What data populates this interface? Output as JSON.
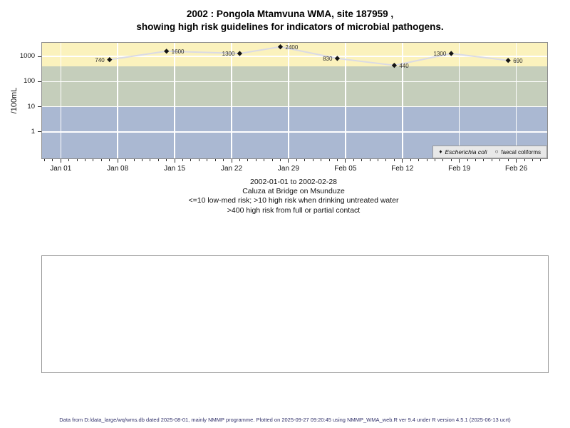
{
  "title": {
    "line1": "2002 : Pongola Mtamvuna WMA, site 187959 ,",
    "line2": "showing high risk guidelines for indicators of microbial pathogens."
  },
  "subtitle": {
    "line1": "2002-01-01 to 2002-02-28",
    "line2": "Caluza at Bridge on Msunduze",
    "line3": "<=10 low-med risk; >10 high risk when drinking untreated water",
    "line4": ">400 high risk from full or partial contact"
  },
  "footer": "Data from D:/data_large/wq/wms.db dated 2025-08-01, mainly NMMP programme. Plotted on 2025-09-27 09:20:45 using NMMP_WMA_web.R ver 9.4 under R version 4.5.1 (2025-06-13 ucrt)",
  "chart_data": {
    "type": "line",
    "title": "2002 : Pongola Mtamvuna WMA, site 187959 , showing high risk guidelines for indicators of microbial pathogens.",
    "ylabel": "/100mL",
    "yscale": "log",
    "ylim": [
      0.089,
      3460
    ],
    "xlim_days": [
      -2.3,
      59.8
    ],
    "grid": "white weekly vertical lines and decade horizontal lines",
    "y_ticks": [
      {
        "value": 1000,
        "label": "1000"
      },
      {
        "value": 100,
        "label": "100"
      },
      {
        "value": 10,
        "label": "10"
      },
      {
        "value": 1,
        "label": "1"
      }
    ],
    "x_ticks": [
      {
        "day": 0,
        "label": "Jan 01"
      },
      {
        "day": 7,
        "label": "Jan 08"
      },
      {
        "day": 14,
        "label": "Jan 15"
      },
      {
        "day": 21,
        "label": "Jan 22"
      },
      {
        "day": 28,
        "label": "Jan 29"
      },
      {
        "day": 35,
        "label": "Feb 05"
      },
      {
        "day": 42,
        "label": "Feb 12"
      },
      {
        "day": 49,
        "label": "Feb 19"
      },
      {
        "day": 56,
        "label": "Feb 26"
      }
    ],
    "bands": [
      {
        "key": "band-high-risk",
        "meaning": ">400 high risk from full or partial contact",
        "from": 400,
        "to": 3460,
        "color": "#FBF2BD"
      },
      {
        "key": "band-medium-risk",
        "meaning": ">10 high risk when drinking untreated water",
        "from": 10,
        "to": 400,
        "color": "#C5CEBB"
      },
      {
        "key": "band-low-med-risk",
        "meaning": "<=10 low-med risk",
        "from": 0.089,
        "to": 10,
        "color": "#AAB8D2"
      }
    ],
    "series": [
      {
        "name": "Escherichia coli",
        "marker": "filled-diamond",
        "line_color": "#DADAE4",
        "marker_color": "#141414",
        "points": [
          {
            "date": "2002-01-07",
            "day": 6,
            "value": 740,
            "label": "740",
            "label_side": "left"
          },
          {
            "date": "2002-01-14",
            "day": 13,
            "value": 1600,
            "label": "1600",
            "label_side": "right"
          },
          {
            "date": "2002-01-23",
            "day": 22,
            "value": 1300,
            "label": "1300",
            "label_side": "left"
          },
          {
            "date": "2002-01-28",
            "day": 27,
            "value": 2400,
            "label": "2400",
            "label_side": "right"
          },
          {
            "date": "2002-02-04",
            "day": 34,
            "value": 830,
            "label": "830",
            "label_side": "left"
          },
          {
            "date": "2002-02-11",
            "day": 41,
            "value": 440,
            "label": "440",
            "label_side": "right"
          },
          {
            "date": "2002-02-18",
            "day": 48,
            "value": 1300,
            "label": "1300",
            "label_side": "left"
          },
          {
            "date": "2002-02-25",
            "day": 55,
            "value": 690,
            "label": "690",
            "label_side": "right"
          }
        ]
      },
      {
        "name": "faecal coliforms",
        "marker": "open-circle",
        "points": []
      }
    ],
    "legend": {
      "position": "bottom-right",
      "items": [
        {
          "marker": "♦",
          "label": "Escherichia coli",
          "italic": true
        },
        {
          "marker": "○",
          "label": "faecal coliforms",
          "italic": false
        }
      ]
    }
  }
}
